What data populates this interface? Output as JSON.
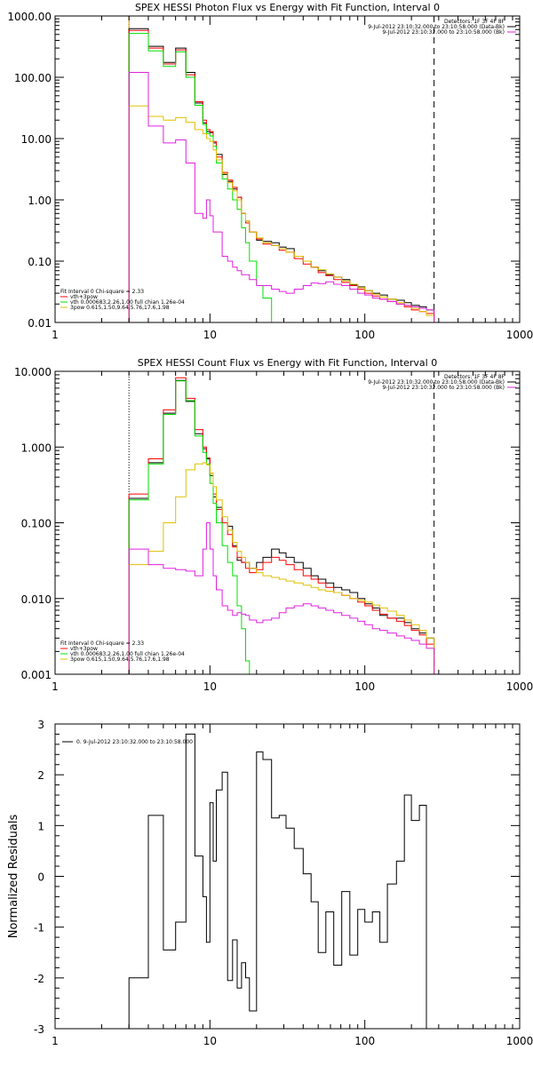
{
  "chart_data": [
    {
      "type": "line",
      "title": "SPEX HESSI Photon Flux vs Energy with Fit Function, Interval 0",
      "xscale": "log",
      "yscale": "log",
      "xlim": [
        1,
        1000
      ],
      "ylim": [
        0.01,
        1000
      ],
      "x_tick_labels": [
        "1",
        "10",
        "100",
        "1000"
      ],
      "y_tick_labels": [
        "0.01",
        "0.10",
        "1.00",
        "10.00",
        "100.00",
        "1000.00"
      ],
      "x_edges": [
        3.0,
        3.5,
        4.0,
        4.5,
        5.0,
        5.5,
        6.0,
        6.5,
        7.0,
        7.5,
        8.0,
        8.5,
        9.0,
        9.5,
        10.0,
        10.5,
        11.0,
        12.0,
        13.0,
        14.0,
        15.0,
        16.0,
        17.0,
        18.0,
        20.0,
        22.0,
        25.0,
        28.0,
        31.0,
        35.0,
        40.0,
        45.0,
        50.0,
        56.0,
        63.0,
        71.0,
        80.0,
        90.0,
        100.0,
        112.0,
        125.0,
        140.0,
        160.0,
        180.0,
        200.0,
        225.0,
        250.0,
        280.0
      ],
      "series": [
        {
          "color": "#000000",
          "values": [
            620.0,
            620.0,
            320.0,
            320.0,
            175.0,
            175.0,
            300.0,
            300.0,
            120.0,
            120.0,
            38.0,
            38.0,
            18.0,
            13.0,
            12.5,
            8.5,
            5.5,
            2.6,
            2.0,
            1.5,
            1.1,
            0.6,
            0.45,
            0.3,
            0.22,
            0.21,
            0.2,
            0.17,
            0.16,
            0.12,
            0.1,
            0.08,
            0.07,
            0.06,
            0.055,
            0.05,
            0.041,
            0.038,
            0.033,
            0.03,
            0.028,
            0.024,
            0.023,
            0.021,
            0.019,
            0.018,
            0.016
          ]
        },
        {
          "color": "#ff0000",
          "values": [
            580.0,
            580.0,
            300.0,
            300.0,
            165.0,
            165.0,
            280.0,
            280.0,
            110.0,
            110.0,
            40.0,
            40.0,
            20.0,
            14.0,
            13.0,
            9.0,
            5.0,
            2.8,
            2.1,
            1.6,
            1.1,
            0.6,
            0.42,
            0.3,
            0.23,
            0.19,
            0.18,
            0.15,
            0.14,
            0.11,
            0.09,
            0.08,
            0.065,
            0.058,
            0.05,
            0.045,
            0.04,
            0.035,
            0.03,
            0.027,
            0.024,
            0.022,
            0.02,
            0.018,
            0.016,
            0.015,
            0.014
          ]
        },
        {
          "color": "#00e000",
          "values": [
            520.0,
            520.0,
            270.0,
            270.0,
            150.0,
            150.0,
            260.0,
            260.0,
            100.0,
            100.0,
            35.0,
            35.0,
            17.0,
            12.0,
            11.0,
            7.5,
            4.0,
            2.2,
            1.5,
            1.0,
            0.7,
            0.35,
            0.2,
            0.1,
            0.04,
            0.025,
            0.005
          ]
        },
        {
          "color": "#e0c000",
          "values": [
            34.0,
            34.0,
            23.0,
            23.0,
            20.0,
            20.0,
            22.0,
            22.0,
            18.5,
            18.5,
            14.0,
            14.0,
            12.0,
            10.0,
            9.0,
            6.5,
            4.5,
            2.7,
            1.9,
            1.4,
            1.0,
            0.6,
            0.45,
            0.3,
            0.24,
            0.2,
            0.18,
            0.16,
            0.14,
            0.12,
            0.1,
            0.08,
            0.072,
            0.062,
            0.055,
            0.048,
            0.042,
            0.037,
            0.033,
            0.029,
            0.026,
            0.024,
            0.021,
            0.019,
            0.017,
            0.015,
            0.013
          ]
        },
        {
          "color": "#e020e0",
          "values": [
            120.0,
            120.0,
            16.0,
            16.0,
            8.5,
            8.5,
            9.5,
            9.5,
            4.0,
            4.0,
            0.6,
            0.6,
            0.5,
            1.0,
            0.55,
            0.3,
            0.3,
            0.12,
            0.1,
            0.08,
            0.07,
            0.06,
            0.06,
            0.05,
            0.04,
            0.04,
            0.035,
            0.032,
            0.03,
            0.035,
            0.04,
            0.044,
            0.043,
            0.046,
            0.042,
            0.04,
            0.035,
            0.03,
            0.028,
            0.025,
            0.024,
            0.022,
            0.02,
            0.019,
            0.018,
            0.017,
            0.016
          ]
        }
      ],
      "vlines": [
        {
          "x": 3.0,
          "style": "dotted",
          "color": "#000000"
        },
        {
          "x": 3.0,
          "style": "solid",
          "color": "#e0a000"
        },
        {
          "x": 280.0,
          "style": "dashed",
          "color": "#000000"
        }
      ],
      "legend_top": [
        {
          "text": "Detectors: 1F 3F 4F 8F",
          "color": "#000000"
        },
        {
          "text": "9-Jul-2012 23:10:32.000 to 23:10:58.000 (Data-Bk)",
          "color": "#000000"
        },
        {
          "text": "9-Jul-2012 23:10:32.000 to 23:10:58.000 (Bk)",
          "color": "#e020e0"
        }
      ],
      "legend_bottom": [
        {
          "text": "Fit Interval 0   Chi-square = 2.33",
          "color": "#000000"
        },
        {
          "text": "vth+3pow",
          "color": "#ff0000"
        },
        {
          "text": "vth 0.000683,2.26,1.00  full chian 1.26e-04",
          "color": "#00e000"
        },
        {
          "text": "3pow 0.615,1.50,9.64,5.76,17.6,1.98",
          "color": "#e0c000"
        }
      ]
    },
    {
      "type": "line",
      "title": "SPEX HESSI Count Flux vs Energy with Fit Function, Interval 0",
      "xscale": "log",
      "yscale": "log",
      "xlim": [
        1,
        1000
      ],
      "ylim": [
        0.001,
        10
      ],
      "x_tick_labels": [
        "1",
        "10",
        "100",
        "1000"
      ],
      "y_tick_labels": [
        "0.001",
        "0.010",
        "0.100",
        "1.000",
        "10.000"
      ],
      "x_edges": [
        3.0,
        3.5,
        4.0,
        4.5,
        5.0,
        5.5,
        6.0,
        6.5,
        7.0,
        7.5,
        8.0,
        8.5,
        9.0,
        9.5,
        10.0,
        10.5,
        11.0,
        12.0,
        13.0,
        14.0,
        15.0,
        16.0,
        17.0,
        18.0,
        20.0,
        22.0,
        25.0,
        28.0,
        31.0,
        35.0,
        40.0,
        45.0,
        50.0,
        56.0,
        63.0,
        71.0,
        80.0,
        90.0,
        100.0,
        112.0,
        125.0,
        140.0,
        160.0,
        180.0,
        200.0,
        225.0,
        250.0,
        280.0
      ],
      "series": [
        {
          "color": "#000000",
          "values": [
            0.21,
            0.21,
            0.62,
            0.62,
            2.8,
            2.8,
            7.6,
            7.6,
            4.0,
            4.0,
            1.5,
            1.5,
            0.95,
            0.7,
            0.42,
            0.22,
            0.16,
            0.1,
            0.09,
            0.05,
            0.032,
            0.03,
            0.03,
            0.025,
            0.03,
            0.035,
            0.045,
            0.04,
            0.035,
            0.03,
            0.025,
            0.02,
            0.018,
            0.016,
            0.014,
            0.013,
            0.012,
            0.01,
            0.0085,
            0.0075,
            0.006,
            0.0055,
            0.0055,
            0.0048,
            0.004,
            0.0035,
            0.003
          ]
        },
        {
          "color": "#ff0000",
          "values": [
            0.24,
            0.24,
            0.7,
            0.7,
            3.1,
            3.1,
            8.2,
            8.2,
            4.4,
            4.4,
            1.7,
            1.7,
            1.0,
            0.72,
            0.45,
            0.24,
            0.15,
            0.1,
            0.07,
            0.048,
            0.035,
            0.03,
            0.025,
            0.022,
            0.024,
            0.03,
            0.035,
            0.032,
            0.028,
            0.024,
            0.02,
            0.018,
            0.016,
            0.014,
            0.012,
            0.011,
            0.01,
            0.009,
            0.008,
            0.007,
            0.0062,
            0.0055,
            0.005,
            0.0044,
            0.0038,
            0.0033,
            0.0025
          ]
        },
        {
          "color": "#00e000",
          "values": [
            0.2,
            0.2,
            0.6,
            0.6,
            2.7,
            2.7,
            7.5,
            7.5,
            4.1,
            4.1,
            1.4,
            1.4,
            0.85,
            0.6,
            0.33,
            0.18,
            0.1,
            0.05,
            0.03,
            0.02,
            0.008,
            0.004,
            0.0015,
            0.0005
          ]
        },
        {
          "color": "#e0c000",
          "values": [
            0.028,
            0.028,
            0.042,
            0.042,
            0.1,
            0.1,
            0.22,
            0.22,
            0.5,
            0.5,
            0.6,
            0.6,
            0.62,
            0.58,
            0.45,
            0.3,
            0.2,
            0.12,
            0.08,
            0.055,
            0.042,
            0.035,
            0.03,
            0.025,
            0.022,
            0.02,
            0.019,
            0.018,
            0.017,
            0.016,
            0.015,
            0.014,
            0.013,
            0.0125,
            0.012,
            0.011,
            0.01,
            0.0095,
            0.009,
            0.0082,
            0.0075,
            0.0068,
            0.006,
            0.0052,
            0.0045,
            0.0038,
            0.003
          ]
        },
        {
          "color": "#e020e0",
          "values": [
            0.045,
            0.045,
            0.028,
            0.028,
            0.025,
            0.025,
            0.024,
            0.024,
            0.023,
            0.023,
            0.02,
            0.02,
            0.045,
            0.1,
            0.045,
            0.02,
            0.013,
            0.008,
            0.007,
            0.006,
            0.0065,
            0.0062,
            0.006,
            0.0052,
            0.0048,
            0.0052,
            0.0055,
            0.0065,
            0.0075,
            0.008,
            0.0085,
            0.008,
            0.0075,
            0.007,
            0.0065,
            0.006,
            0.0055,
            0.005,
            0.0045,
            0.004,
            0.0038,
            0.0035,
            0.0032,
            0.003,
            0.0028,
            0.0025,
            0.0022
          ]
        }
      ],
      "vlines": [
        {
          "x": 3.0,
          "style": "dotted",
          "color": "#000000"
        },
        {
          "x": 280.0,
          "style": "dashed",
          "color": "#000000"
        }
      ],
      "legend_top": [
        {
          "text": "Detectors: 1F 3F 4F 8F",
          "color": "#000000"
        },
        {
          "text": "9-Jul-2012 23:10:32.000 to 23:10:58.000 (Data-Bk)",
          "color": "#000000"
        },
        {
          "text": "9-Jul-2012 23:10:32.000 to 23:10:58.000 (Bk)",
          "color": "#e020e0"
        }
      ],
      "legend_bottom": [
        {
          "text": "Fit Interval 0   Chi-square = 2.33",
          "color": "#000000"
        },
        {
          "text": "vth+3pow",
          "color": "#ff0000"
        },
        {
          "text": "vth 0.000683,2.26,1.00  full chian 1.26e-04",
          "color": "#00e000"
        },
        {
          "text": "3pow 0.615,1.50,9.64,5.76,17.6,1.98",
          "color": "#e0c000"
        }
      ]
    },
    {
      "type": "line",
      "title": "",
      "ylabel": "Normalized Residuals",
      "xscale": "log",
      "yscale": "linear",
      "xlim": [
        1,
        1000
      ],
      "ylim": [
        -3,
        3
      ],
      "x_tick_labels": [
        "1",
        "10",
        "100",
        "1000"
      ],
      "y_tick_labels": [
        "-3",
        "-2",
        "-1",
        "0",
        "1",
        "2",
        "3"
      ],
      "x_edges": [
        3.0,
        3.5,
        4.0,
        4.5,
        5.0,
        5.5,
        6.0,
        6.5,
        7.0,
        7.5,
        8.0,
        8.5,
        9.0,
        9.5,
        10.0,
        10.5,
        11.0,
        12.0,
        13.0,
        14.0,
        15.0,
        16.0,
        17.0,
        18.0,
        20.0,
        22.0,
        25.0,
        28.0,
        31.0,
        35.0,
        40.0,
        45.0,
        50.0,
        56.0,
        63.0,
        71.0,
        80.0,
        90.0,
        100.0,
        112.0,
        125.0,
        140.0,
        160.0,
        180.0,
        200.0,
        225.0,
        250.0,
        280.0
      ],
      "series": [
        {
          "color": "#000000",
          "values": [
            -2.0,
            -2.0,
            1.2,
            1.2,
            -1.45,
            -1.45,
            -0.9,
            -0.9,
            2.8,
            2.8,
            0.4,
            0.4,
            -0.4,
            -1.3,
            1.45,
            0.3,
            1.7,
            2.05,
            -2.05,
            -1.25,
            -2.2,
            -1.7,
            -2.0,
            -2.65,
            2.45,
            2.3,
            1.15,
            1.2,
            0.95,
            0.55,
            0.05,
            -0.5,
            -1.5,
            -0.7,
            -1.75,
            -0.3,
            -1.55,
            -0.65,
            -0.9,
            -0.7,
            -1.3,
            -0.15,
            0.3,
            1.6,
            1.1,
            1.4,
            -3.2
          ]
        }
      ],
      "legend_top": [
        {
          "text": "0. 9-Jul-2012 23:10:32.000 to 23:10:58.000",
          "color": "#000000"
        }
      ]
    }
  ]
}
